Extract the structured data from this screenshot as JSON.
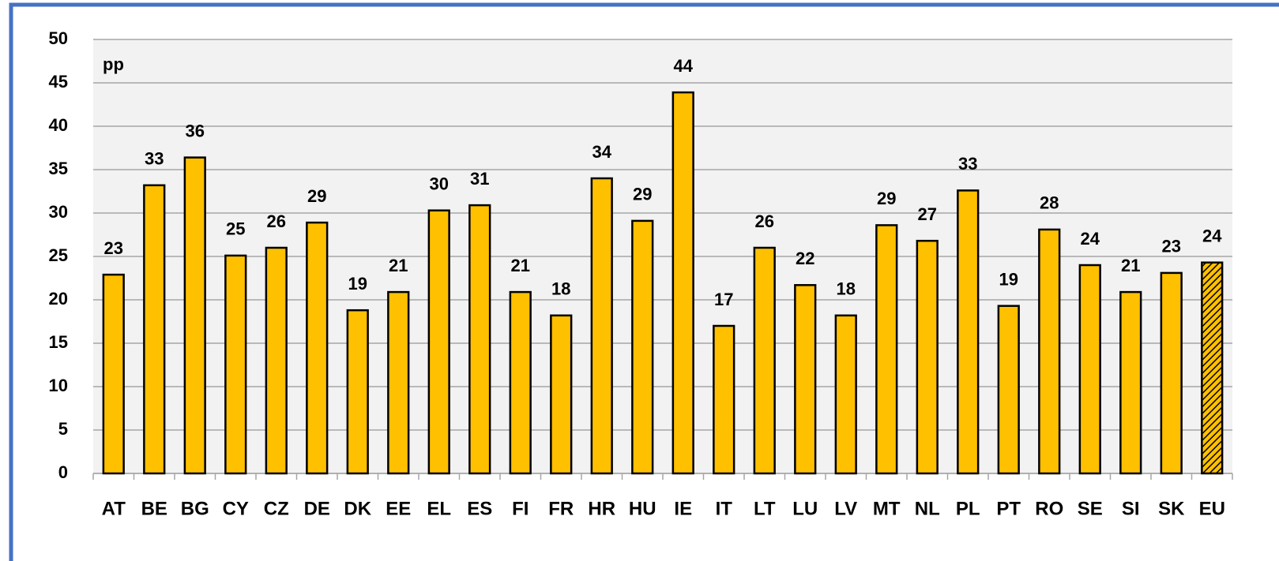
{
  "chart_data": {
    "type": "bar",
    "annotation": "pp",
    "categories": [
      "AT",
      "BE",
      "BG",
      "CY",
      "CZ",
      "DE",
      "DK",
      "EE",
      "EL",
      "ES",
      "FI",
      "FR",
      "HR",
      "HU",
      "IE",
      "IT",
      "LT",
      "LU",
      "LV",
      "MT",
      "NL",
      "PL",
      "PT",
      "RO",
      "SE",
      "SI",
      "SK",
      "EU"
    ],
    "values": [
      22.9,
      33.2,
      36.4,
      25.1,
      26.0,
      28.9,
      18.8,
      20.9,
      30.3,
      30.9,
      20.9,
      18.2,
      34.0,
      29.1,
      43.9,
      17.0,
      26.0,
      21.7,
      18.2,
      28.6,
      26.8,
      32.6,
      19.3,
      28.1,
      24.0,
      20.9,
      23.1,
      24.3
    ],
    "value_labels": [
      "23",
      "33",
      "36",
      "25",
      "26",
      "29",
      "19",
      "21",
      "30",
      "31",
      "21",
      "18",
      "34",
      "29",
      "44",
      "17",
      "26",
      "22",
      "18",
      "29",
      "27",
      "33",
      "19",
      "28",
      "24",
      "21",
      "23",
      "24"
    ],
    "patterns": [
      "solid",
      "solid",
      "solid",
      "solid",
      "solid",
      "solid",
      "solid",
      "solid",
      "solid",
      "solid",
      "solid",
      "solid",
      "solid",
      "solid",
      "solid",
      "solid",
      "solid",
      "solid",
      "solid",
      "solid",
      "solid",
      "solid",
      "solid",
      "solid",
      "solid",
      "solid",
      "solid",
      "hatched"
    ],
    "color": "#ffc000",
    "ylim": [
      0,
      50
    ],
    "yticks": [
      0,
      5,
      10,
      15,
      20,
      25,
      30,
      35,
      40,
      45,
      50
    ],
    "grid": true
  }
}
